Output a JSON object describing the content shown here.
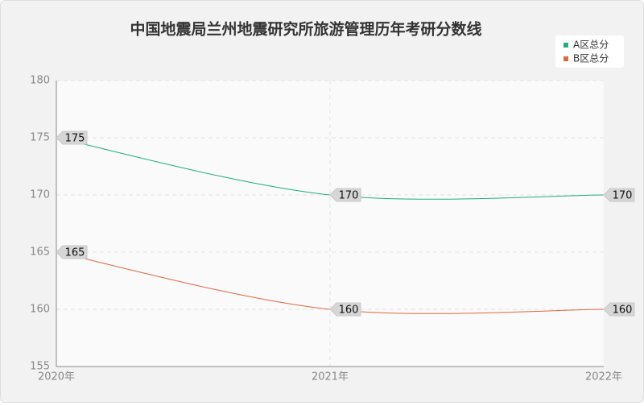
{
  "chart_data": {
    "type": "line",
    "title": "中国地震局兰州地震研究所旅游管理历年考研分数线",
    "categories": [
      "2020年",
      "2021年",
      "2022年"
    ],
    "series": [
      {
        "name": "A区总分",
        "color": "#1fae7c",
        "values": [
          175,
          170,
          170
        ]
      },
      {
        "name": "B区总分",
        "color": "#e0683f",
        "values": [
          165,
          160,
          160
        ]
      }
    ],
    "ylim": [
      155,
      180
    ],
    "yticks": [
      155,
      160,
      165,
      170,
      175,
      180
    ],
    "grid": true,
    "smooth": true,
    "legend": "top-right"
  }
}
